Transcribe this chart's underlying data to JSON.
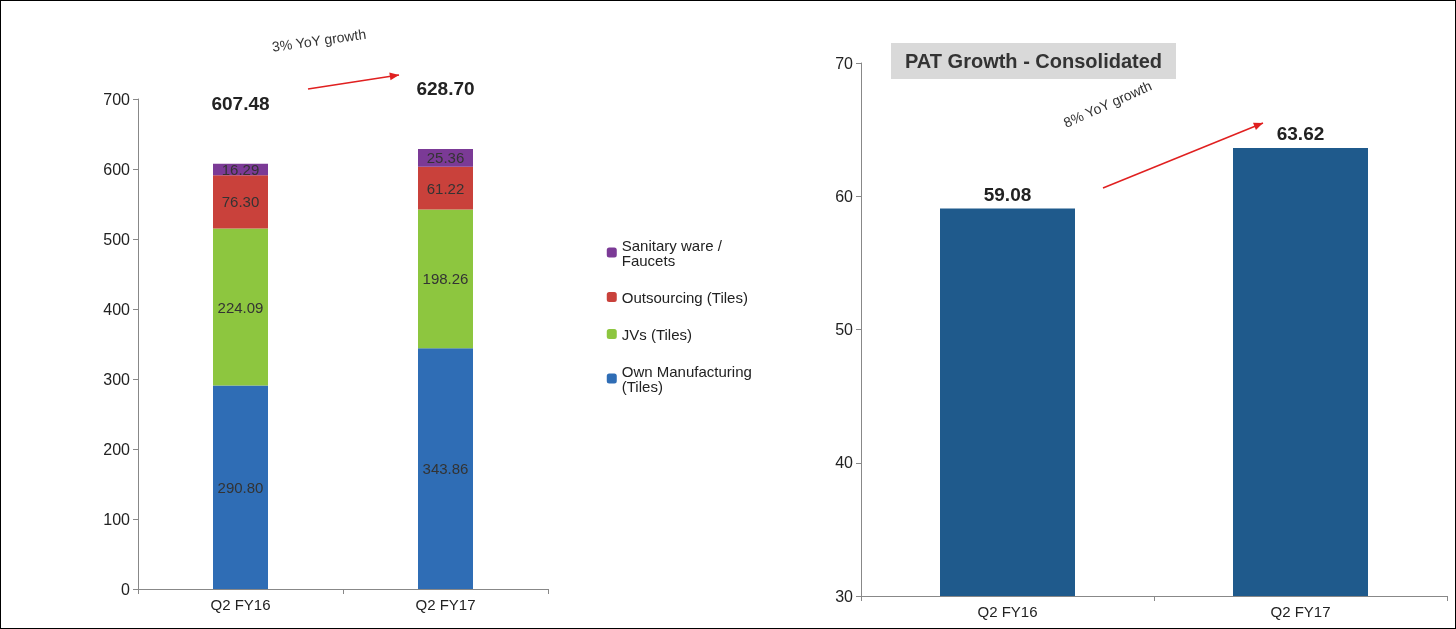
{
  "chart_data": [
    {
      "type": "bar",
      "stacked": true,
      "categories": [
        "Q2 FY16",
        "Q2 FY17"
      ],
      "series": [
        {
          "name": "Own Manufacturing (Tiles)",
          "color": "#2f6db5",
          "values": [
            290.8,
            343.86
          ],
          "value_labels": [
            "290.80",
            "343.86"
          ]
        },
        {
          "name": "JVs (Tiles)",
          "color": "#8dc63f",
          "values": [
            224.09,
            198.26
          ],
          "value_labels": [
            "224.09",
            "198.26"
          ]
        },
        {
          "name": "Outsourcing (Tiles)",
          "color": "#c9413b",
          "values": [
            76.3,
            61.22
          ],
          "value_labels": [
            "76.30",
            "61.22"
          ]
        },
        {
          "name": "Sanitary ware / Faucets",
          "color": "#7b3a96",
          "values": [
            16.29,
            25.36
          ],
          "value_labels": [
            "16.29",
            "25.36"
          ]
        }
      ],
      "ylim": [
        0,
        700
      ],
      "yticks": [
        0,
        100,
        200,
        300,
        400,
        500,
        600,
        700
      ],
      "grid": false,
      "legend": "right",
      "totals": [
        "607.48",
        "628.70"
      ],
      "annotations": [
        "3% YoY growth"
      ]
    },
    {
      "type": "bar",
      "title": "PAT Growth - Consolidated",
      "categories": [
        "Q2 FY16",
        "Q2 FY17"
      ],
      "values": [
        59.08,
        63.62
      ],
      "color": "#1f5a8c",
      "ylim": [
        30,
        70
      ],
      "yticks": [
        30,
        40,
        50,
        60,
        70
      ],
      "grid": false,
      "legend": false,
      "data_labels": true,
      "annotations": [
        "8% YoY growth"
      ]
    }
  ]
}
